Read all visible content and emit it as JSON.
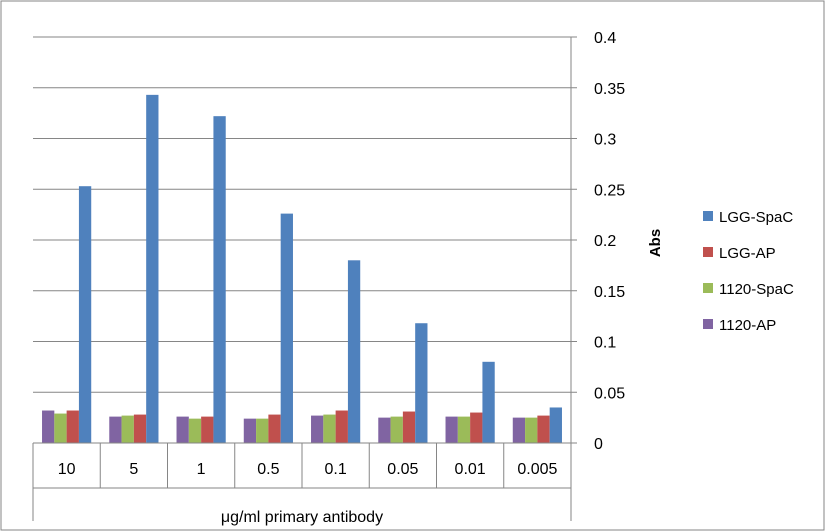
{
  "chart_data": {
    "type": "bar",
    "xlabel": "μg/ml primary antibody",
    "ylabel": "Abs",
    "ylim": [
      0,
      0.4
    ],
    "y_ticks": [
      "0",
      "0.05",
      "0.1",
      "0.15",
      "0.2",
      "0.25",
      "0.3",
      "0.35",
      "0.4"
    ],
    "y_axis_side": "right",
    "grid": true,
    "legend_position": "right",
    "categories": [
      "10",
      "5",
      "1",
      "0.5",
      "0.1",
      "0.05",
      "0.01",
      "0.005"
    ],
    "series": [
      {
        "name": "LGG-SpaC",
        "color": "#4F81BD",
        "values": [
          0.253,
          0.343,
          0.322,
          0.226,
          0.18,
          0.118,
          0.08,
          0.035
        ]
      },
      {
        "name": "LGG-AP",
        "color": "#C0504D",
        "values": [
          0.032,
          0.028,
          0.026,
          0.028,
          0.032,
          0.031,
          0.03,
          0.027
        ]
      },
      {
        "name": "1120-SpaC",
        "color": "#9BBB59",
        "values": [
          0.029,
          0.027,
          0.024,
          0.024,
          0.028,
          0.026,
          0.026,
          0.025
        ]
      },
      {
        "name": "1120-AP",
        "color": "#8064A2",
        "values": [
          0.032,
          0.026,
          0.026,
          0.024,
          0.027,
          0.025,
          0.026,
          0.025
        ]
      }
    ],
    "bar_order": [
      "1120-AP",
      "1120-SpaC",
      "LGG-AP",
      "LGG-SpaC"
    ]
  }
}
